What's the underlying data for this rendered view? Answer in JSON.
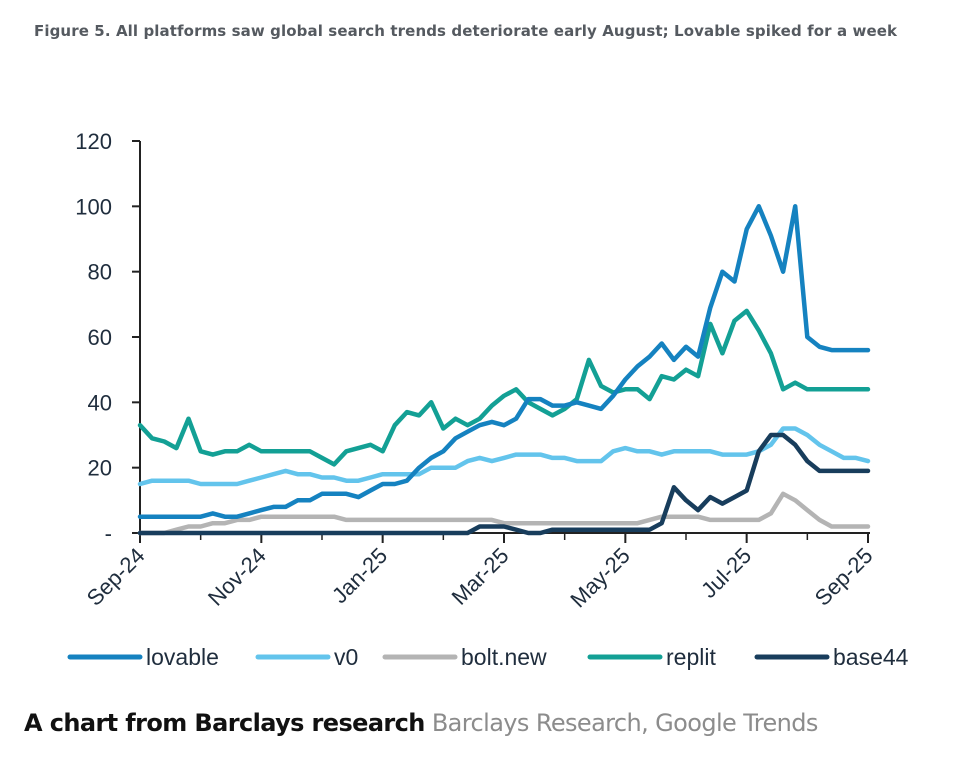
{
  "figure_title": "Figure 5. All platforms saw global search trends deteriorate early August; Lovable spiked for a week",
  "caption": {
    "main": "A chart from Barclays research",
    "source": "Barclays Research, Google Trends"
  },
  "colors": {
    "lovable": "#1582c0",
    "v0": "#63c4ec",
    "bolt.new": "#b4b4b4",
    "replit": "#13a095",
    "base44": "#183d5c"
  },
  "chart_data": {
    "type": "line",
    "title": "Figure 5. All platforms saw global search trends deteriorate early August; Lovable spiked for a week",
    "xlabel": "",
    "ylabel": "",
    "ylim": [
      0,
      120
    ],
    "yticks": [
      0,
      20,
      40,
      60,
      80,
      100,
      120
    ],
    "ytick_labels": [
      "-",
      "20",
      "40",
      "60",
      "80",
      "100",
      "120"
    ],
    "x_tick_labels": [
      "Sep-24",
      "Nov-24",
      "Jan-25",
      "Mar-25",
      "May-25",
      "Jul-25",
      "Sep-25"
    ],
    "x_tick_weeks": [
      0,
      10,
      20,
      30,
      40,
      50,
      60
    ],
    "x_unit": "weeks since Sep-24",
    "legend_position": "bottom",
    "grid": false,
    "series": [
      {
        "name": "lovable",
        "values": [
          5,
          5,
          5,
          5,
          5,
          5,
          6,
          5,
          5,
          6,
          7,
          8,
          8,
          10,
          10,
          12,
          12,
          12,
          11,
          13,
          15,
          15,
          16,
          20,
          23,
          25,
          29,
          31,
          33,
          34,
          33,
          35,
          41,
          41,
          39,
          39,
          40,
          39,
          38,
          42,
          47,
          51,
          54,
          58,
          53,
          57,
          54,
          69,
          80,
          77,
          93,
          100,
          91,
          80,
          100,
          60,
          57,
          56,
          56,
          56,
          56
        ]
      },
      {
        "name": "v0",
        "values": [
          15,
          16,
          16,
          16,
          16,
          15,
          15,
          15,
          15,
          16,
          17,
          18,
          19,
          18,
          18,
          17,
          17,
          16,
          16,
          17,
          18,
          18,
          18,
          18,
          20,
          20,
          20,
          22,
          23,
          22,
          23,
          24,
          24,
          24,
          23,
          23,
          22,
          22,
          22,
          25,
          26,
          25,
          25,
          24,
          25,
          25,
          25,
          25,
          24,
          24,
          24,
          25,
          27,
          32,
          32,
          30,
          27,
          25,
          23,
          23,
          22
        ]
      },
      {
        "name": "bolt.new",
        "values": [
          0,
          0,
          0,
          1,
          2,
          2,
          3,
          3,
          4,
          4,
          5,
          5,
          5,
          5,
          5,
          5,
          5,
          4,
          4,
          4,
          4,
          4,
          4,
          4,
          4,
          4,
          4,
          4,
          4,
          4,
          3,
          3,
          3,
          3,
          3,
          3,
          3,
          3,
          3,
          3,
          3,
          3,
          4,
          5,
          5,
          5,
          5,
          4,
          4,
          4,
          4,
          4,
          6,
          12,
          10,
          7,
          4,
          2,
          2,
          2,
          2
        ]
      },
      {
        "name": "replit",
        "values": [
          33,
          29,
          28,
          26,
          35,
          25,
          24,
          25,
          25,
          27,
          25,
          25,
          25,
          25,
          25,
          23,
          21,
          25,
          26,
          27,
          25,
          33,
          37,
          36,
          40,
          32,
          35,
          33,
          35,
          39,
          42,
          44,
          40,
          38,
          36,
          38,
          41,
          53,
          45,
          43,
          44,
          44,
          41,
          48,
          47,
          50,
          48,
          64,
          55,
          65,
          68,
          62,
          55,
          44,
          46,
          44,
          44,
          44,
          44,
          44,
          44
        ]
      },
      {
        "name": "base44",
        "values": [
          0,
          0,
          0,
          0,
          0,
          0,
          0,
          0,
          0,
          0,
          0,
          0,
          0,
          0,
          0,
          0,
          0,
          0,
          0,
          0,
          0,
          0,
          0,
          0,
          0,
          0,
          0,
          0,
          2,
          2,
          2,
          1,
          0,
          0,
          1,
          1,
          1,
          1,
          1,
          1,
          1,
          1,
          1,
          3,
          14,
          10,
          7,
          11,
          9,
          11,
          13,
          25,
          30,
          30,
          27,
          22,
          19,
          19,
          19,
          19,
          19
        ]
      }
    ]
  }
}
